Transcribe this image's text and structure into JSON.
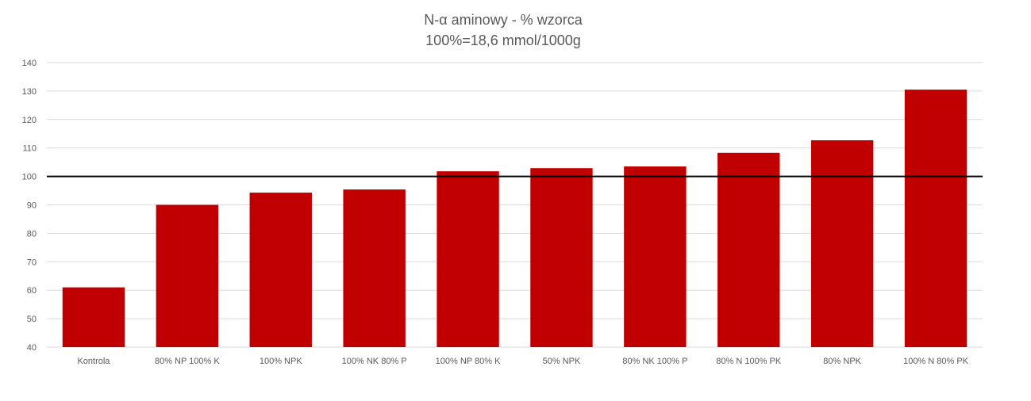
{
  "chart_data": {
    "type": "bar",
    "title": "N-α aminowy - % wzorca",
    "subtitle": "100%=18,6 mmol/1000g",
    "categories": [
      "Kontrola",
      "80% NP 100% K",
      "100% NPK",
      "100% NK 80% P",
      "100% NP 80% K",
      "50% NPK",
      "80% NK 100% P",
      "80% N 100% PK",
      "80% NPK",
      "100% N 80% PK"
    ],
    "values": [
      61,
      90,
      94.3,
      95.4,
      101.8,
      102.9,
      103.5,
      108.3,
      112.7,
      130.5
    ],
    "ylim": [
      40,
      140
    ],
    "yticks": [
      40,
      50,
      60,
      70,
      80,
      90,
      100,
      110,
      120,
      130,
      140
    ],
    "reference_line": 100,
    "grid": true,
    "legend": "none",
    "bar_color": "#c00000",
    "reference_color": "#000000"
  }
}
